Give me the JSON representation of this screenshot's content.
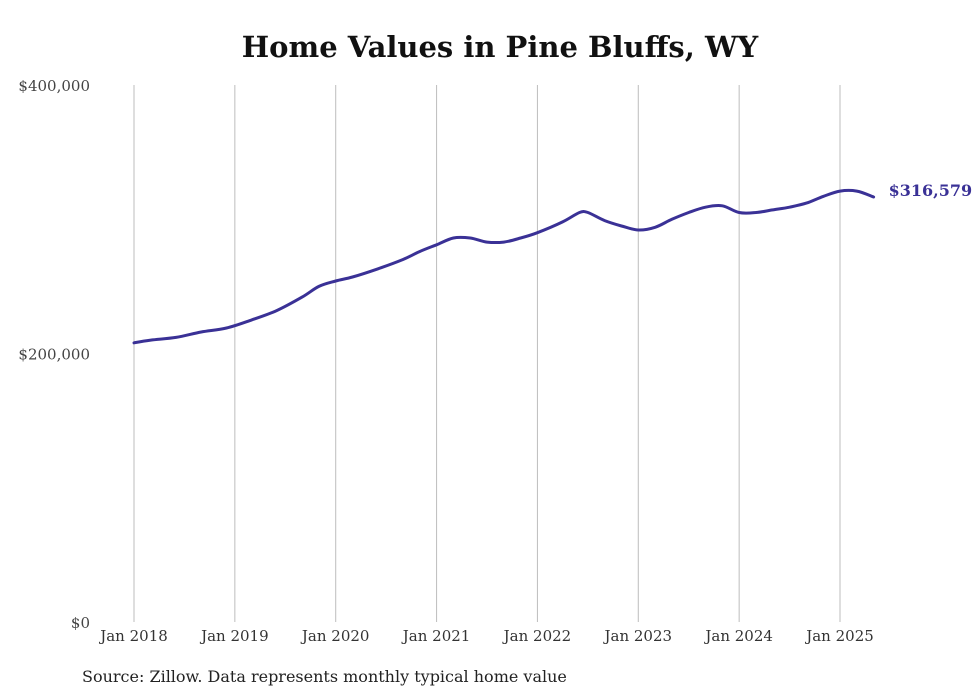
{
  "chart_data": {
    "type": "line",
    "title": "Home Values in Pine Bluffs, WY",
    "xlabel": "",
    "ylabel": "",
    "ylim": [
      0,
      400000
    ],
    "yticks": [
      {
        "value": 0,
        "label": "$0"
      },
      {
        "value": 200000,
        "label": "$200,000"
      },
      {
        "value": 400000,
        "label": "$400,000"
      }
    ],
    "xticks": [
      {
        "year": 2018,
        "label": "Jan 2018"
      },
      {
        "year": 2019,
        "label": "Jan 2019"
      },
      {
        "year": 2020,
        "label": "Jan 2020"
      },
      {
        "year": 2021,
        "label": "Jan 2021"
      },
      {
        "year": 2022,
        "label": "Jan 2022"
      },
      {
        "year": 2023,
        "label": "Jan 2023"
      },
      {
        "year": 2024,
        "label": "Jan 2024"
      },
      {
        "year": 2025,
        "label": "Jan 2025"
      }
    ],
    "grid": "vertical",
    "line_color": "#3a3196",
    "end_label": "$316,579",
    "series": [
      {
        "x": [
          "2018-01",
          "2018-03",
          "2018-06",
          "2018-09",
          "2018-12",
          "2019-03",
          "2019-06",
          "2019-09",
          "2019-11",
          "2020-01",
          "2020-03",
          "2020-06",
          "2020-09",
          "2020-11",
          "2021-01",
          "2021-03",
          "2021-05",
          "2021-07",
          "2021-09",
          "2021-11",
          "2022-01",
          "2022-04",
          "2022-06",
          "2022-07",
          "2022-09",
          "2022-11",
          "2023-01",
          "2023-03",
          "2023-05",
          "2023-07",
          "2023-09",
          "2023-11",
          "2024-01",
          "2024-03",
          "2024-05",
          "2024-07",
          "2024-09",
          "2024-11",
          "2025-01",
          "2025-03",
          "2025-05"
        ],
        "y": [
          208000,
          210000,
          212000,
          216000,
          219000,
          225000,
          232000,
          242000,
          250000,
          254000,
          257000,
          263000,
          270000,
          276000,
          281000,
          286000,
          286000,
          283000,
          283000,
          286000,
          290000,
          298000,
          305000,
          305000,
          299000,
          295000,
          292000,
          294000,
          300000,
          305000,
          309000,
          310000,
          305000,
          305000,
          307000,
          309000,
          312000,
          317000,
          321000,
          321000,
          316579
        ]
      }
    ]
  },
  "footer": {
    "source": "Source: Zillow. Data represents monthly typical home value"
  }
}
